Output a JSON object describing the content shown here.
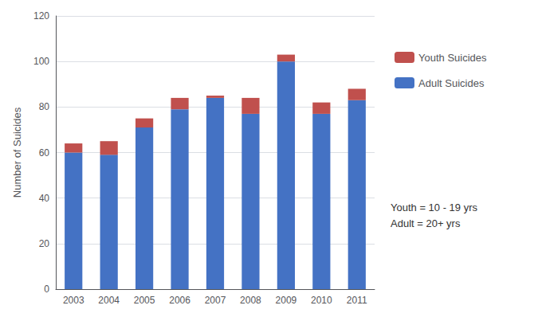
{
  "chart_data": {
    "type": "bar",
    "stacked": true,
    "categories": [
      "2003",
      "2004",
      "2005",
      "2006",
      "2007",
      "2008",
      "2009",
      "2010",
      "2011"
    ],
    "series": [
      {
        "name": "Adult Suicides",
        "color": "#4472C4",
        "values": [
          60,
          59,
          71,
          79,
          84,
          77,
          100,
          77,
          83
        ]
      },
      {
        "name": "Youth Suicides",
        "color": "#C0504D",
        "values": [
          4,
          6,
          4,
          5,
          1,
          7,
          3,
          5,
          5
        ]
      }
    ],
    "ylabel": "Number of Suicides",
    "ylim": [
      0,
      120
    ],
    "yticks": [
      0,
      20,
      40,
      60,
      80,
      100,
      120
    ],
    "grid": true,
    "legend": "right",
    "annotation": "Youth = 10 - 19 yrs\nAdult = 20+ yrs"
  }
}
